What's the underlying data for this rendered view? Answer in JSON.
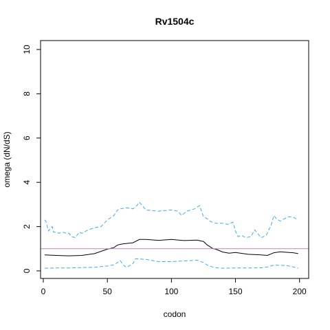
{
  "chart_data": {
    "type": "line",
    "title": "Rv1504c",
    "xlabel": "codon",
    "ylabel": "omega (dN/dS)",
    "xlim": [
      0,
      205
    ],
    "ylim": [
      0,
      10
    ],
    "x_ticks": [
      0,
      50,
      100,
      150,
      200
    ],
    "y_ticks": [
      0,
      2,
      4,
      6,
      8,
      10
    ],
    "grid": false,
    "reference_line": {
      "y": 1,
      "color": "#c080c0"
    },
    "series": [
      {
        "role": "estimate",
        "color": "#000000",
        "dash": "solid",
        "x": [
          1,
          10,
          20,
          30,
          40,
          50,
          55,
          58,
          62,
          70,
          75,
          80,
          90,
          100,
          110,
          120,
          125,
          128,
          132,
          136,
          140,
          145,
          150,
          160,
          170,
          175,
          180,
          185,
          190,
          195,
          199
        ],
        "y": [
          0.72,
          0.7,
          0.68,
          0.7,
          0.78,
          0.98,
          1.05,
          1.17,
          1.22,
          1.27,
          1.42,
          1.42,
          1.38,
          1.42,
          1.37,
          1.39,
          1.33,
          1.17,
          1.02,
          0.95,
          0.85,
          0.8,
          0.83,
          0.75,
          0.72,
          0.7,
          0.82,
          0.86,
          0.84,
          0.82,
          0.78
        ]
      },
      {
        "role": "upper-bound",
        "color": "#3fa9f5",
        "dash": "dashed",
        "x": [
          1,
          2,
          4,
          7,
          8,
          10,
          12,
          15,
          18,
          20,
          22,
          25,
          28,
          30,
          35,
          40,
          45,
          50,
          55,
          58,
          60,
          65,
          70,
          73,
          75,
          78,
          80,
          90,
          100,
          105,
          108,
          112,
          118,
          122,
          125,
          128,
          130,
          132,
          135,
          140,
          144,
          148,
          150,
          152,
          155,
          158,
          162,
          165,
          170,
          174,
          178,
          180,
          182,
          185,
          188,
          192,
          196,
          199
        ],
        "y": [
          2.3,
          2.25,
          1.8,
          2.0,
          1.75,
          1.75,
          1.7,
          1.75,
          1.7,
          1.7,
          1.55,
          1.5,
          1.75,
          1.7,
          1.85,
          1.95,
          2.0,
          2.3,
          2.5,
          2.75,
          2.8,
          2.85,
          2.8,
          2.95,
          3.1,
          2.9,
          2.75,
          2.7,
          2.75,
          2.7,
          2.5,
          2.7,
          2.8,
          2.95,
          2.45,
          2.35,
          2.25,
          2.2,
          2.15,
          2.15,
          2.1,
          2.2,
          1.8,
          1.55,
          1.6,
          1.5,
          1.55,
          1.85,
          1.5,
          1.6,
          2.1,
          2.5,
          2.35,
          2.25,
          2.35,
          2.45,
          2.4,
          2.3
        ]
      },
      {
        "role": "lower-bound",
        "color": "#3fa9f5",
        "dash": "dashed",
        "x": [
          1,
          10,
          20,
          30,
          40,
          50,
          55,
          58,
          60,
          62,
          65,
          70,
          72,
          80,
          90,
          100,
          110,
          120,
          125,
          128,
          132,
          136,
          140,
          150,
          160,
          170,
          175,
          180,
          185,
          190,
          195,
          199
        ],
        "y": [
          0.12,
          0.13,
          0.13,
          0.15,
          0.16,
          0.22,
          0.27,
          0.38,
          0.47,
          0.3,
          0.15,
          0.33,
          0.55,
          0.52,
          0.42,
          0.42,
          0.45,
          0.48,
          0.38,
          0.26,
          0.18,
          0.13,
          0.12,
          0.13,
          0.13,
          0.14,
          0.18,
          0.26,
          0.25,
          0.24,
          0.18,
          0.12
        ]
      }
    ]
  }
}
